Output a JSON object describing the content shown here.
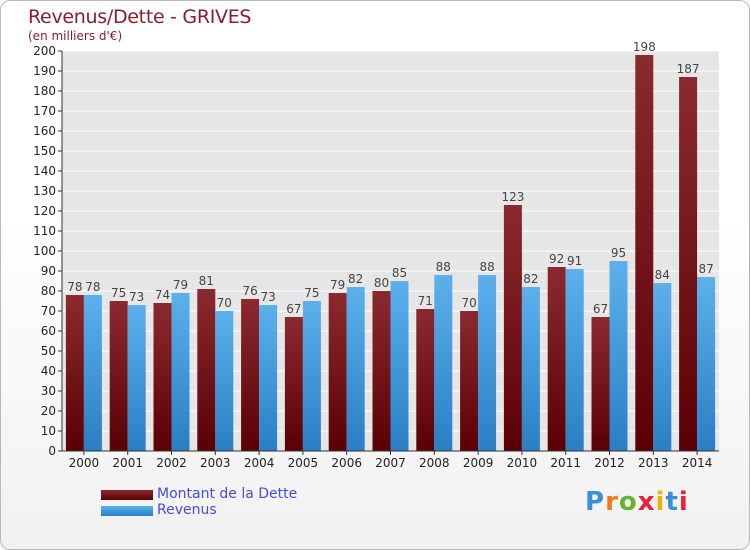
{
  "title": "Revenus/Dette - GRIVES",
  "subtitle": "(en milliers d'€)",
  "logo": {
    "letters": [
      {
        "ch": "P",
        "color": "#3a8fd6"
      },
      {
        "ch": "r",
        "color": "#f07a1a"
      },
      {
        "ch": "o",
        "color": "#66b32e"
      },
      {
        "ch": "x",
        "color": "#e8203a"
      },
      {
        "ch": "i",
        "color": "#f0b400"
      },
      {
        "ch": "t",
        "color": "#3a8fd6"
      },
      {
        "ch": "i",
        "color": "#e8203a"
      }
    ]
  },
  "colors": {
    "dette_top": "#8b2a2e",
    "dette_bottom": "#5a0005",
    "revenus_top": "#5cb0ec",
    "revenus_bottom": "#2a7fc4",
    "grid": "#ffffff",
    "axis_text": "#222222",
    "value_text": "#444444"
  },
  "chart_data": {
    "type": "bar",
    "title": "Revenus/Dette - GRIVES",
    "ylabel": "(en milliers d'€)",
    "categories": [
      "2000",
      "2001",
      "2002",
      "2003",
      "2004",
      "2005",
      "2006",
      "2007",
      "2008",
      "2009",
      "2010",
      "2011",
      "2012",
      "2013",
      "2014"
    ],
    "series": [
      {
        "name": "Montant de la Dette",
        "values": [
          78,
          75,
          74,
          81,
          76,
          67,
          79,
          80,
          71,
          70,
          123,
          92,
          67,
          198,
          187
        ]
      },
      {
        "name": "Revenus",
        "values": [
          78,
          73,
          79,
          70,
          73,
          75,
          82,
          85,
          88,
          88,
          82,
          91,
          95,
          84,
          87
        ]
      }
    ],
    "ylim": [
      0,
      200
    ],
    "yticks": [
      0,
      10,
      20,
      30,
      40,
      50,
      60,
      70,
      80,
      90,
      100,
      110,
      120,
      130,
      140,
      150,
      160,
      170,
      180,
      190,
      200
    ],
    "grid": true,
    "legend": "bottom-left"
  }
}
